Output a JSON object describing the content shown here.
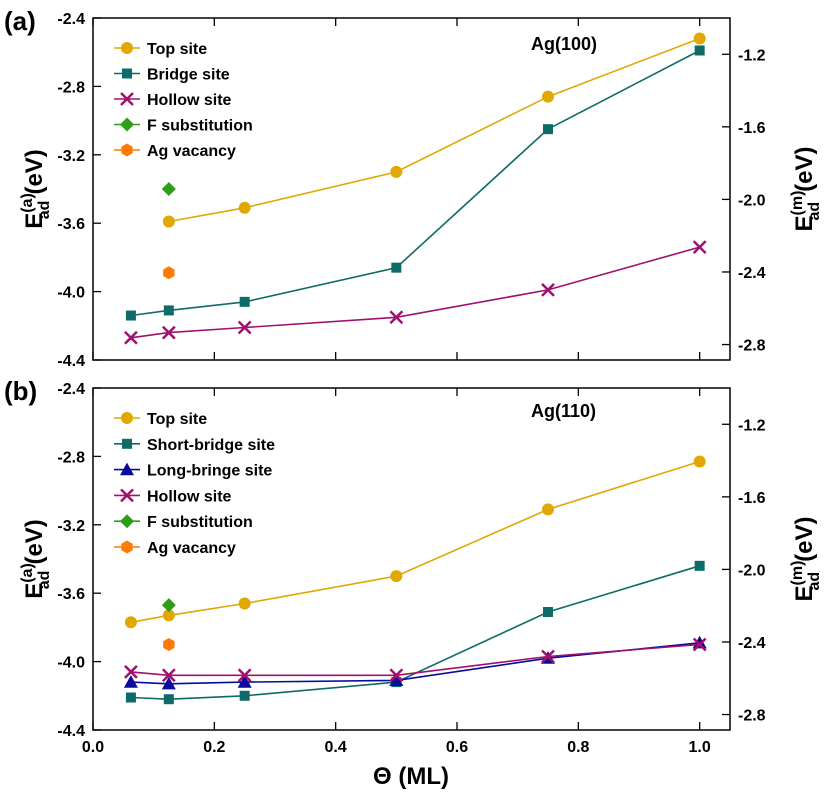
{
  "figure": {
    "xlabel_symbol": "Θ",
    "xlabel_unit": "(ML)",
    "ylabel_left_main": "E",
    "ylabel_left_sup": "(a)",
    "ylabel_left_sub": "ad",
    "ylabel_right_main": "E",
    "ylabel_right_sup": "(m)",
    "ylabel_right_sub": "ad",
    "ylabel_unit": "(eV)",
    "xlim": [
      0.0,
      1.05
    ],
    "xticks": [
      "0.0",
      "0.2",
      "0.4",
      "0.6",
      "0.8",
      "1.0"
    ]
  },
  "colors": {
    "top": "#E0A800",
    "bridge": "#0E6B67",
    "longbridge": "#0A0A9C",
    "hollow": "#A0106E",
    "fsub": "#2E9E1A",
    "vacancy": "#FF7A00"
  },
  "chart_data": [
    {
      "panel": "(a)",
      "type": "line",
      "title": "Ag(100)",
      "xlabel": "Θ (ML)",
      "ylabel_left": "E(a)ad (eV)",
      "ylabel_right": "E(m)ad (eV)",
      "ylim": [
        -4.4,
        -2.4
      ],
      "yticks": [
        "-2.4",
        "-2.8",
        "-3.2",
        "-3.6",
        "-4.0",
        "-4.4"
      ],
      "ylim_right": [
        -2.8852,
        -1.0
      ],
      "yticks_right": [
        "-1.2",
        "-1.6",
        "-2.0",
        "-2.4",
        "-2.8"
      ],
      "series": [
        {
          "name": "Top site",
          "key": "top",
          "marker": "circle",
          "x": [
            0.125,
            0.25,
            0.5,
            0.75,
            1.0
          ],
          "values": [
            -3.59,
            -3.51,
            -3.3,
            -2.86,
            -2.52
          ]
        },
        {
          "name": "Bridge site",
          "key": "bridge",
          "marker": "square",
          "x": [
            0.0625,
            0.125,
            0.25,
            0.5,
            0.75,
            1.0
          ],
          "values": [
            -4.14,
            -4.11,
            -4.06,
            -3.86,
            -3.05,
            -2.59
          ]
        },
        {
          "name": "Hollow site",
          "key": "hollow",
          "marker": "x",
          "x": [
            0.0625,
            0.125,
            0.25,
            0.5,
            0.75,
            1.0
          ],
          "values": [
            -4.27,
            -4.24,
            -4.21,
            -4.15,
            -3.99,
            -3.74
          ]
        },
        {
          "name": "F substitution",
          "key": "fsub",
          "marker": "diamond",
          "x": [
            0.125
          ],
          "values": [
            -3.4
          ]
        },
        {
          "name": "Ag vacancy",
          "key": "vacancy",
          "marker": "hexagon",
          "x": [
            0.125
          ],
          "values": [
            -3.89
          ]
        }
      ]
    },
    {
      "panel": "(b)",
      "type": "line",
      "title": "Ag(110)",
      "xlabel": "Θ (ML)",
      "ylabel_left": "E(a)ad (eV)",
      "ylabel_right": "E(m)ad (eV)",
      "ylim": [
        -4.4,
        -2.4
      ],
      "yticks": [
        "-2.4",
        "-2.8",
        "-3.2",
        "-3.6",
        "-4.0",
        "-4.4"
      ],
      "ylim_right": [
        -2.8852,
        -1.0
      ],
      "yticks_right": [
        "-1.2",
        "-1.6",
        "-2.0",
        "-2.4",
        "-2.8"
      ],
      "series": [
        {
          "name": "Top site",
          "key": "top",
          "marker": "circle",
          "x": [
            0.0625,
            0.125,
            0.25,
            0.5,
            0.75,
            1.0
          ],
          "values": [
            -3.77,
            -3.73,
            -3.66,
            -3.5,
            -3.11,
            -2.83
          ]
        },
        {
          "name": "Short-bridge site",
          "key": "bridge",
          "marker": "square",
          "x": [
            0.0625,
            0.125,
            0.25,
            0.5,
            0.75,
            1.0
          ],
          "values": [
            -4.21,
            -4.22,
            -4.2,
            -4.12,
            -3.71,
            -3.44
          ]
        },
        {
          "name": "Long-bringe site",
          "key": "longbridge",
          "marker": "triangle",
          "x": [
            0.0625,
            0.125,
            0.25,
            0.5,
            0.75,
            1.0
          ],
          "values": [
            -4.12,
            -4.13,
            -4.12,
            -4.11,
            -3.98,
            -3.89
          ]
        },
        {
          "name": "Hollow site",
          "key": "hollow",
          "marker": "x",
          "x": [
            0.0625,
            0.125,
            0.25,
            0.5,
            0.75,
            1.0
          ],
          "values": [
            -4.06,
            -4.08,
            -4.08,
            -4.08,
            -3.97,
            -3.9
          ]
        },
        {
          "name": "F substitution",
          "key": "fsub",
          "marker": "diamond",
          "x": [
            0.125
          ],
          "values": [
            -3.67
          ]
        },
        {
          "name": "Ag vacancy",
          "key": "vacancy",
          "marker": "hexagon",
          "x": [
            0.125
          ],
          "values": [
            -3.9
          ]
        }
      ]
    }
  ]
}
